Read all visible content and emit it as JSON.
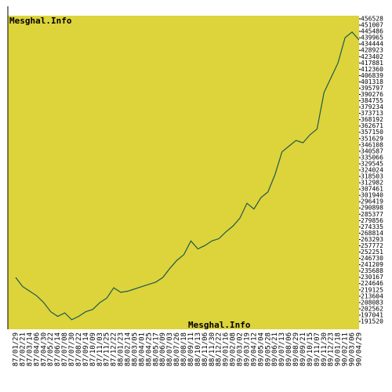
{
  "chart_data": {
    "type": "line",
    "watermark_top": "Mesghal.Info",
    "watermark_bottom": "Mesghal.Info",
    "categories": [
      "87/01/29",
      "87/02/21",
      "87/03/14",
      "87/04/06",
      "87/04/30",
      "87/05/22",
      "87/06/14",
      "87/07/08",
      "87/07/30",
      "87/08/22",
      "87/09/14",
      "87/10/09",
      "87/11/03",
      "87/11/25",
      "87/12/22",
      "88/01/23",
      "88/02/14",
      "88/03/05",
      "88/04/01",
      "88/04/25",
      "88/05/17",
      "88/06/09",
      "88/07/03",
      "88/07/26",
      "88/08/18",
      "88/09/11",
      "88/10/13",
      "88/11/06",
      "88/11/30",
      "88/12/22",
      "89/01/16",
      "89/02/08",
      "89/03/02",
      "89/03/19",
      "89/04/12",
      "89/05/04",
      "89/05/28",
      "89/06/21",
      "89/07/13",
      "89/08/06",
      "89/08/29",
      "89/09/21",
      "89/10/15",
      "89/11/07",
      "89/11/30",
      "89/12/23",
      "90/01/18",
      "90/02/11",
      "90/03/06",
      "90/04/29"
    ],
    "values": [
      230000,
      222000,
      218000,
      214000,
      208000,
      200000,
      196000,
      199000,
      193000,
      196000,
      200000,
      202000,
      208000,
      212000,
      221000,
      217000,
      218000,
      220000,
      222000,
      224000,
      226000,
      230000,
      238000,
      245000,
      250000,
      262000,
      255000,
      258000,
      262000,
      264000,
      270000,
      275000,
      282000,
      295000,
      290000,
      300000,
      305000,
      320000,
      340000,
      345000,
      350000,
      348000,
      355000,
      360000,
      392000,
      405000,
      418000,
      440000,
      445000,
      438000
    ],
    "color": "#1d5a4e",
    "plot_color": "#ddd33a",
    "ylim": [
      184650,
      459275
    ],
    "yticks": [
      456528,
      451007,
      445486,
      439965,
      434444,
      428923,
      423402,
      417881,
      412360,
      406839,
      401318,
      395797,
      390276,
      384755,
      379234,
      373713,
      368192,
      362671,
      357150,
      351629,
      346108,
      340587,
      335066,
      329545,
      324024,
      318503,
      312982,
      307461,
      301940,
      296419,
      290898,
      285377,
      279856,
      274335,
      268814,
      263293,
      257772,
      252251,
      246730,
      241209,
      235688,
      230167,
      224646,
      219125,
      213604,
      208083,
      202562,
      197041,
      191520
    ]
  }
}
